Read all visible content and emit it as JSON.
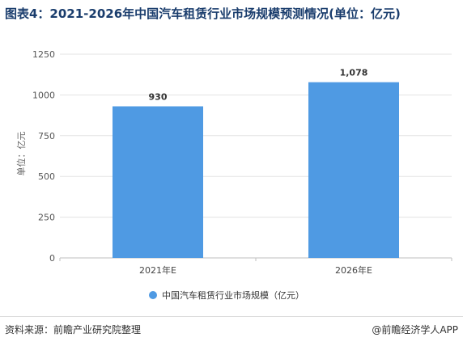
{
  "title": "图表4：2021-2026年中国汽车租赁行业市场规模预测情况(单位：亿元)",
  "source": "资料来源：前瞻产业研究院整理",
  "credit": "@前瞻经济学人APP",
  "chart_data": {
    "type": "bar",
    "categories": [
      "2021年E",
      "2026年E"
    ],
    "series": [
      {
        "name": "中国汽车租赁行业市场规模（亿元）",
        "values": [
          930,
          1078
        ],
        "labels": [
          "930",
          "1,078"
        ],
        "color": "#4f9ae3"
      }
    ],
    "ylabel": "单位：亿元",
    "yticks": [
      0,
      250,
      500,
      750,
      1000,
      1250
    ],
    "ylim": [
      0,
      1250
    ],
    "grid": true,
    "legend": "bottom-center"
  }
}
